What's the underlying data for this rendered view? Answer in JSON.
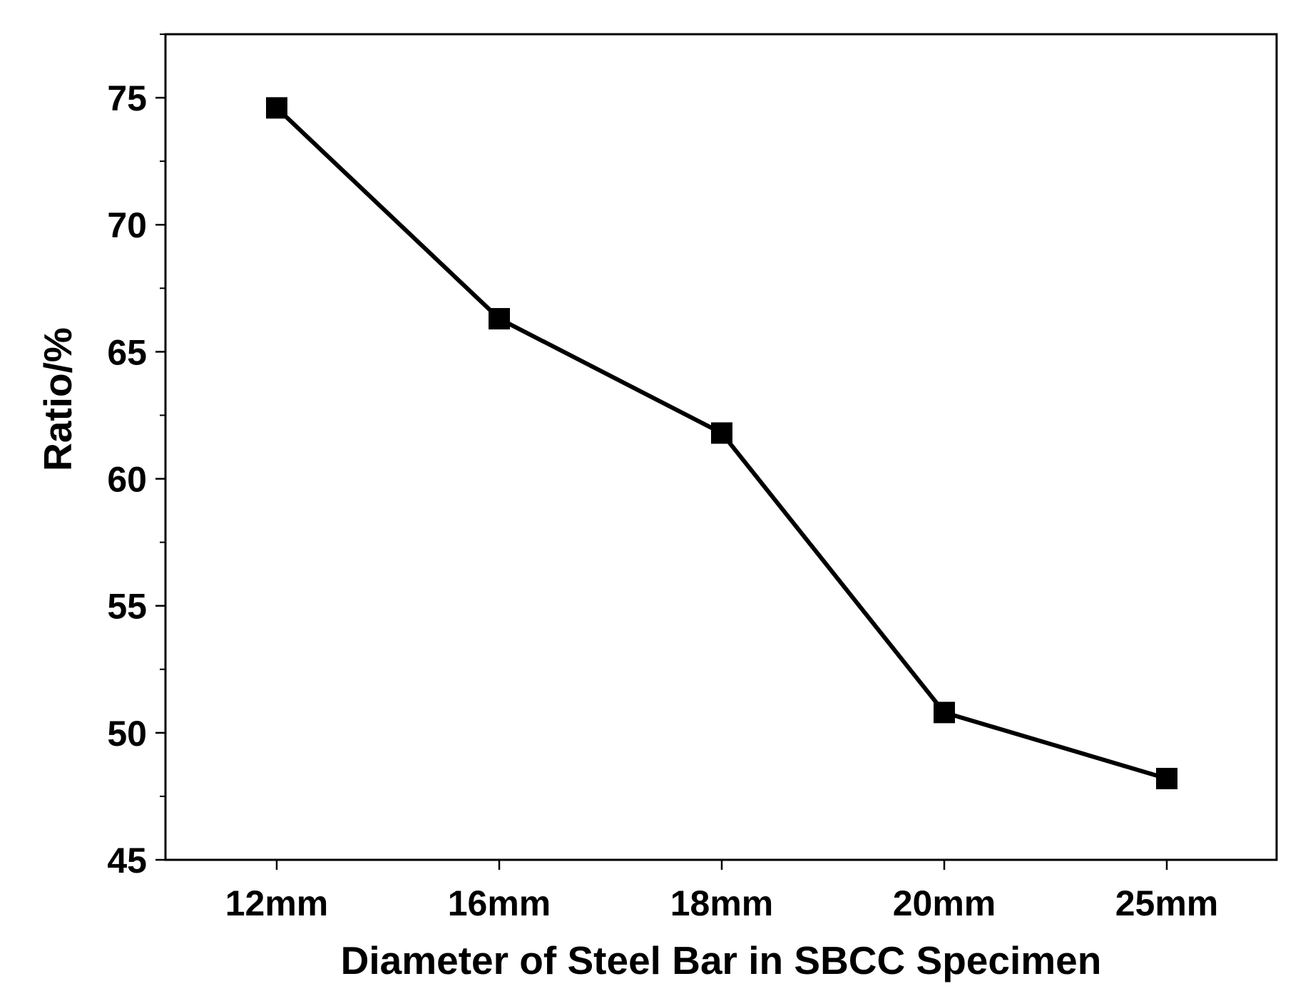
{
  "chart_data": {
    "type": "line",
    "title": "",
    "xlabel": "Diameter of Steel Bar in SBCC Specimen",
    "ylabel": "Ratio/%",
    "categories": [
      "12mm",
      "16mm",
      "18mm",
      "20mm",
      "25mm"
    ],
    "series": [
      {
        "values": [
          74.6,
          66.3,
          61.8,
          50.8,
          48.2
        ],
        "marker": "square",
        "color": "#000000"
      }
    ],
    "ylim": [
      45,
      77.5
    ],
    "yticks": [
      45,
      50,
      55,
      60,
      65,
      70,
      75
    ],
    "y_minor_step": 2.5,
    "grid": false,
    "legend": "none",
    "colors": {
      "line": "#000000",
      "marker": "#000000",
      "axis": "#000000",
      "background": "#ffffff"
    }
  }
}
